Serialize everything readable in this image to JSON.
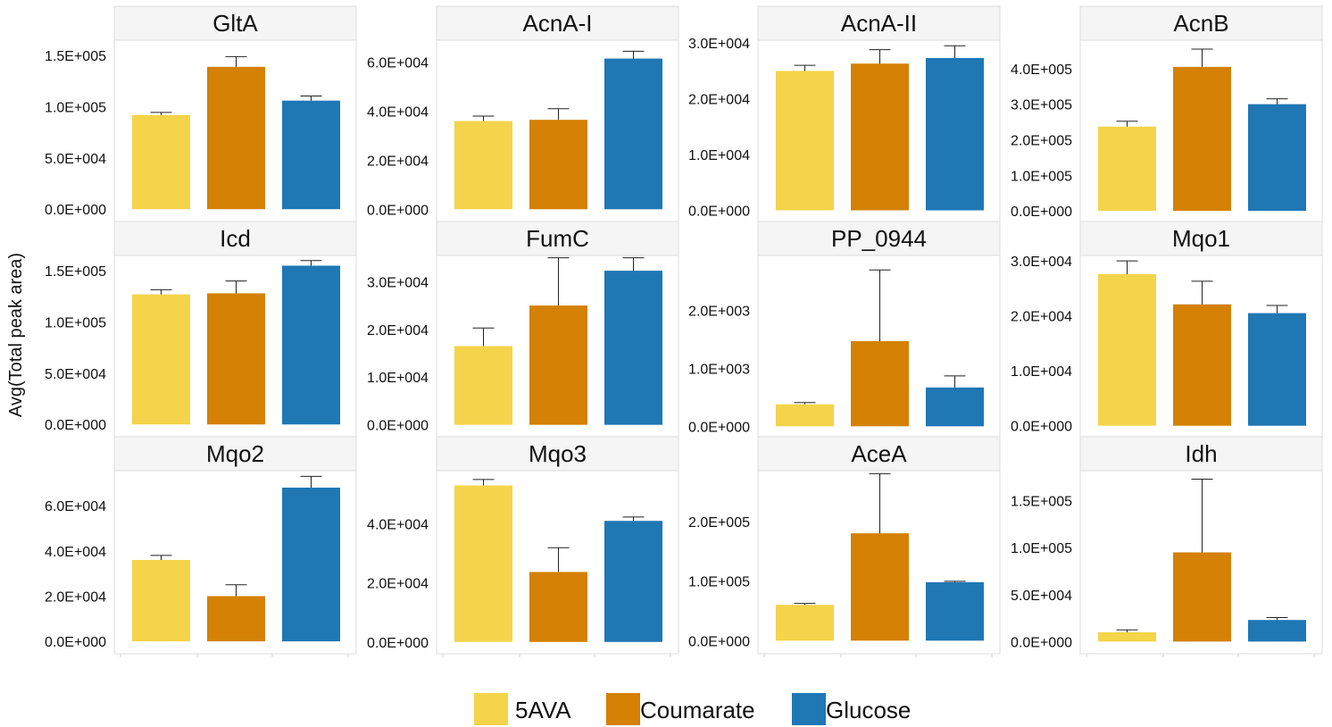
{
  "chart_data": {
    "type": "bar",
    "ylabel": "Avg(Total peak area)",
    "categories": [
      "5AVA",
      "Coumarate",
      "Glucose"
    ],
    "colors": {
      "5AVA": "#f4d44a",
      "Coumarate": "#d48105",
      "Glucose": "#1f77b4"
    },
    "legend": {
      "placement": "bottom-center",
      "items": [
        {
          "label": "5AVA",
          "color": "#f4d44a"
        },
        {
          "label": "Coumarate",
          "color": "#d48105"
        },
        {
          "label": "Glucose",
          "color": "#1f77b4"
        }
      ]
    },
    "grid": false,
    "panels": [
      {
        "title": "GltA",
        "ylim": [
          -12000,
          165000
        ],
        "values": [
          92000,
          139000,
          106000
        ],
        "errors": [
          2500,
          10000,
          4500
        ],
        "yticks": [
          {
            "value": 0,
            "label": "0.0E+000"
          },
          {
            "value": 50000,
            "label": "5.0E+004"
          },
          {
            "value": 100000,
            "label": "1.0E+005"
          },
          {
            "value": 150000,
            "label": "1.5E+005"
          }
        ]
      },
      {
        "title": "AcnA-I",
        "ylim": [
          -5000,
          69000
        ],
        "values": [
          36000,
          36500,
          61500
        ],
        "errors": [
          2000,
          4500,
          3000
        ],
        "yticks": [
          {
            "value": 0,
            "label": "0.0E+000"
          },
          {
            "value": 20000,
            "label": "2.0E+004"
          },
          {
            "value": 40000,
            "label": "4.0E+004"
          },
          {
            "value": 60000,
            "label": "6.0E+004"
          }
        ]
      },
      {
        "title": "AcnA-II",
        "ylim": [
          -2000,
          30500
        ],
        "values": [
          25000,
          26300,
          27300
        ],
        "errors": [
          1000,
          2500,
          2200
        ],
        "yticks": [
          {
            "value": 0,
            "label": "0.0E+000"
          },
          {
            "value": 10000,
            "label": "1.0E+004"
          },
          {
            "value": 20000,
            "label": "2.0E+004"
          },
          {
            "value": 30000,
            "label": "3.0E+004"
          }
        ]
      },
      {
        "title": "AcnB",
        "ylim": [
          -30000,
          480000
        ],
        "values": [
          237000,
          405000,
          300000
        ],
        "errors": [
          15000,
          50000,
          15000
        ],
        "yticks": [
          {
            "value": 0,
            "label": "0.0E+000"
          },
          {
            "value": 100000,
            "label": "1.0E+005"
          },
          {
            "value": 200000,
            "label": "2.0E+005"
          },
          {
            "value": 300000,
            "label": "3.0E+005"
          },
          {
            "value": 400000,
            "label": "4.0E+005"
          }
        ]
      },
      {
        "title": "Icd",
        "ylim": [
          -12000,
          165000
        ],
        "values": [
          127000,
          128000,
          155000
        ],
        "errors": [
          4500,
          12000,
          5000
        ],
        "yticks": [
          {
            "value": 0,
            "label": "0.0E+000"
          },
          {
            "value": 50000,
            "label": "5.0E+004"
          },
          {
            "value": 100000,
            "label": "1.0E+005"
          },
          {
            "value": 150000,
            "label": "1.5E+005"
          }
        ]
      },
      {
        "title": "FumC",
        "ylim": [
          -2500,
          35500
        ],
        "values": [
          16500,
          25000,
          32300
        ],
        "errors": [
          3800,
          10000,
          2700
        ],
        "yticks": [
          {
            "value": 0,
            "label": "0.0E+000"
          },
          {
            "value": 10000,
            "label": "1.0E+004"
          },
          {
            "value": 20000,
            "label": "2.0E+004"
          },
          {
            "value": 30000,
            "label": "3.0E+004"
          }
        ]
      },
      {
        "title": "PP_0944",
        "ylim": [
          -180,
          2950
        ],
        "values": [
          380,
          1470,
          670
        ],
        "errors": [
          30,
          1230,
          200
        ],
        "yticks": [
          {
            "value": 0,
            "label": "0.0E+000"
          },
          {
            "value": 1000,
            "label": "1.0E+003"
          },
          {
            "value": 2000,
            "label": "2.0E+003"
          }
        ]
      },
      {
        "title": "Mqo1",
        "ylim": [
          -2000,
          31000
        ],
        "values": [
          27600,
          22100,
          20500
        ],
        "errors": [
          2400,
          4200,
          1400
        ],
        "yticks": [
          {
            "value": 0,
            "label": "0.0E+000"
          },
          {
            "value": 10000,
            "label": "1.0E+004"
          },
          {
            "value": 20000,
            "label": "2.0E+004"
          },
          {
            "value": 30000,
            "label": "3.0E+004"
          }
        ]
      },
      {
        "title": "Mqo2",
        "ylim": [
          -5500,
          75500
        ],
        "values": [
          36000,
          20000,
          68000
        ],
        "errors": [
          2000,
          5000,
          5000
        ],
        "yticks": [
          {
            "value": 0,
            "label": "0.0E+000"
          },
          {
            "value": 20000,
            "label": "2.0E+004"
          },
          {
            "value": 40000,
            "label": "4.0E+004"
          },
          {
            "value": 60000,
            "label": "6.0E+004"
          }
        ]
      },
      {
        "title": "Mqo3",
        "ylim": [
          -4000,
          58000
        ],
        "values": [
          53000,
          23700,
          41000
        ],
        "errors": [
          2000,
          8200,
          1300
        ],
        "yticks": [
          {
            "value": 0,
            "label": "0.0E+000"
          },
          {
            "value": 20000,
            "label": "2.0E+004"
          },
          {
            "value": 40000,
            "label": "4.0E+004"
          }
        ]
      },
      {
        "title": "AceA",
        "ylim": [
          -22000,
          285000
        ],
        "values": [
          60000,
          180000,
          98000
        ],
        "errors": [
          2500,
          100000,
          1500
        ],
        "yticks": [
          {
            "value": 0,
            "label": "0.0E+000"
          },
          {
            "value": 100000,
            "label": "1.0E+005"
          },
          {
            "value": 200000,
            "label": "2.0E+005"
          }
        ]
      },
      {
        "title": "Idh",
        "ylim": [
          -13000,
          182000
        ],
        "values": [
          10000,
          95000,
          23000
        ],
        "errors": [
          2500,
          78000,
          2500
        ],
        "yticks": [
          {
            "value": 0,
            "label": "0.0E+000"
          },
          {
            "value": 50000,
            "label": "5.0E+004"
          },
          {
            "value": 100000,
            "label": "1.0E+005"
          },
          {
            "value": 150000,
            "label": "1.5E+005"
          }
        ]
      }
    ]
  }
}
